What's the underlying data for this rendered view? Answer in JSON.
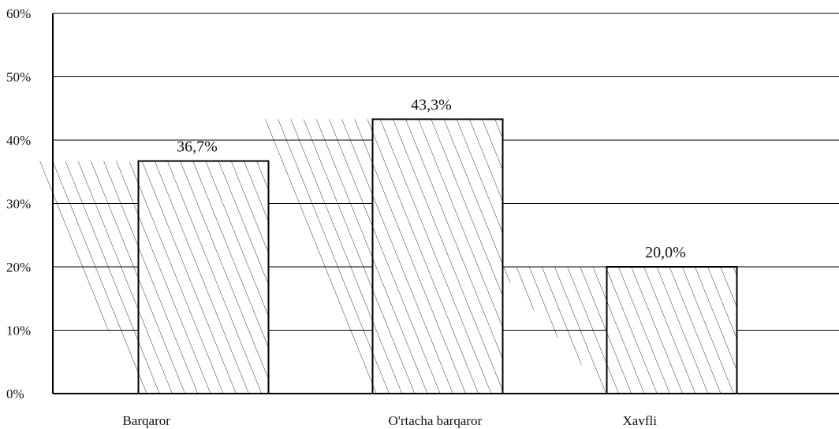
{
  "chart_data": {
    "type": "bar",
    "title": "",
    "xlabel": "",
    "ylabel": "",
    "categories": [
      "Barqaror",
      "O'rtacha barqaror",
      "Xavfli"
    ],
    "values": [
      36.7,
      43.3,
      20.0
    ],
    "data_labels": [
      "36,7%",
      "43,3%",
      "20,0%"
    ],
    "ylim": [
      0,
      60
    ],
    "yticks": [
      0,
      10,
      20,
      30,
      40,
      50,
      60
    ],
    "ytick_labels": [
      "0%",
      "10%",
      "20%",
      "30%",
      "40%",
      "50%",
      "60%"
    ],
    "grid": true,
    "legend": "none",
    "style": {
      "bar_fill": "#ffffff",
      "bar_stroke": "#000000",
      "hatch_color": "#333333",
      "grid_color": "#000000",
      "shadow": true
    }
  }
}
